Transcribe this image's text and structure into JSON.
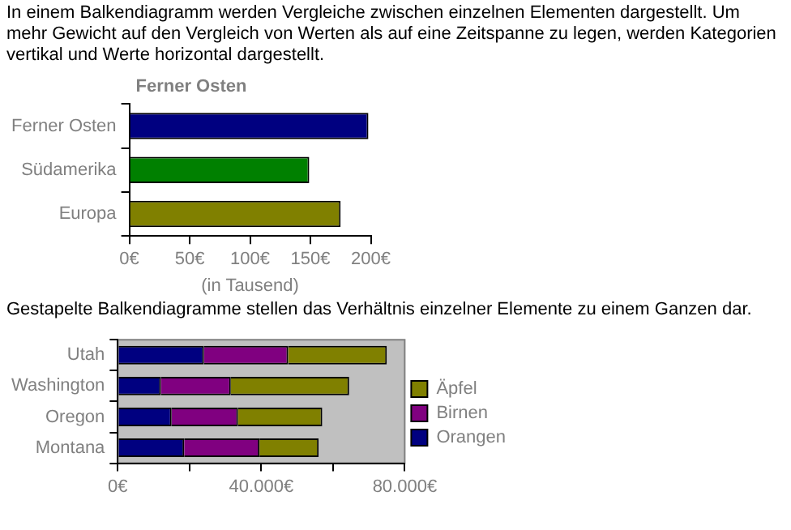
{
  "chart_data": [
    {
      "type": "bar",
      "orientation": "horizontal",
      "title": "Ferner Osten",
      "xlabel": "(in Tausend)",
      "annotations": [
        "In einem Balkendiagramm werden Vergleiche zwischen einzelnen Elementen dargestellt. Um mehr Gewicht auf den Vergleich von Werten als auf eine Zeitspanne zu legen, werden Kategorien vertikal und Werte horizontal dargestellt."
      ],
      "categories": [
        "Ferner Osten",
        "Südamerika",
        "Europa"
      ],
      "values": [
        198,
        149,
        175
      ],
      "colors": [
        "#000080",
        "#008000",
        "#808000"
      ],
      "xlim": [
        0,
        200
      ],
      "xticks": [
        {
          "value": 0,
          "label": "0€"
        },
        {
          "value": 50,
          "label": "50€"
        },
        {
          "value": 100,
          "label": "100€"
        },
        {
          "value": 150,
          "label": "150€"
        },
        {
          "value": 200,
          "label": "200€"
        }
      ],
      "grid": false,
      "legend": false
    },
    {
      "type": "bar",
      "orientation": "horizontal",
      "stacked": true,
      "annotations": [
        "Gestapelte Balkendiagramme stellen das Verhältnis einzelner Elemente zu einem Ganzen dar."
      ],
      "categories": [
        "Utah",
        "Washington",
        "Oregon",
        "Montana"
      ],
      "series": [
        {
          "name": "Orangen",
          "color": "#000080",
          "values": [
            24000,
            12000,
            15000,
            18500
          ]
        },
        {
          "name": "Birnen",
          "color": "#800080",
          "values": [
            23500,
            19500,
            18500,
            21000
          ]
        },
        {
          "name": "Äpfel",
          "color": "#808000",
          "values": [
            27500,
            33000,
            23500,
            16500
          ]
        }
      ],
      "xlim": [
        0,
        80000
      ],
      "xticks": [
        {
          "value": 0,
          "label": "0€"
        },
        {
          "value": 20000,
          "label": null
        },
        {
          "value": 40000,
          "label": "40.000€"
        },
        {
          "value": 60000,
          "label": null
        },
        {
          "value": 80000,
          "label": "80.000€"
        }
      ],
      "grid": false,
      "legend": "right"
    }
  ]
}
